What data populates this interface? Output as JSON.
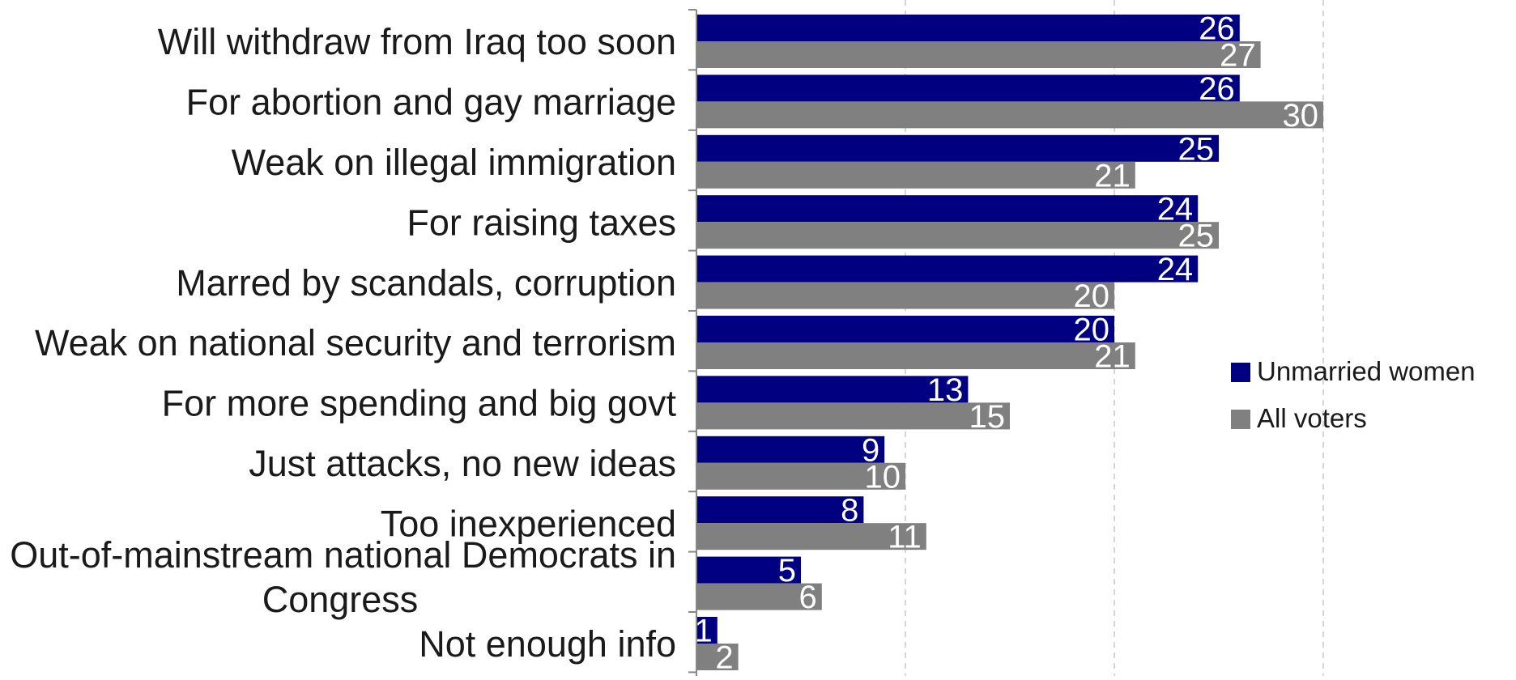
{
  "chart_data": {
    "type": "bar",
    "orientation": "horizontal",
    "categories": [
      "Will withdraw from Iraq too soon",
      "For abortion and gay marriage",
      "Weak on illegal immigration",
      "For raising taxes",
      "Marred by scandals, corruption",
      "Weak on national security and terrorism",
      "For more spending and big govt",
      "Just attacks, no new ideas",
      "Too inexperienced",
      "Out-of-mainstream national Democrats in Congress",
      "Not enough info"
    ],
    "series": [
      {
        "name": "Unmarried women",
        "color": "#000080",
        "values": [
          26,
          26,
          25,
          24,
          24,
          20,
          13,
          9,
          8,
          5,
          1
        ]
      },
      {
        "name": "All voters",
        "color": "#808080",
        "values": [
          27,
          30,
          21,
          25,
          20,
          21,
          15,
          10,
          11,
          6,
          2
        ]
      }
    ],
    "xlim": [
      0,
      30
    ],
    "gridlines": "dashed-vertical",
    "legend_position": "right",
    "data_label_color": "#ffffff"
  }
}
